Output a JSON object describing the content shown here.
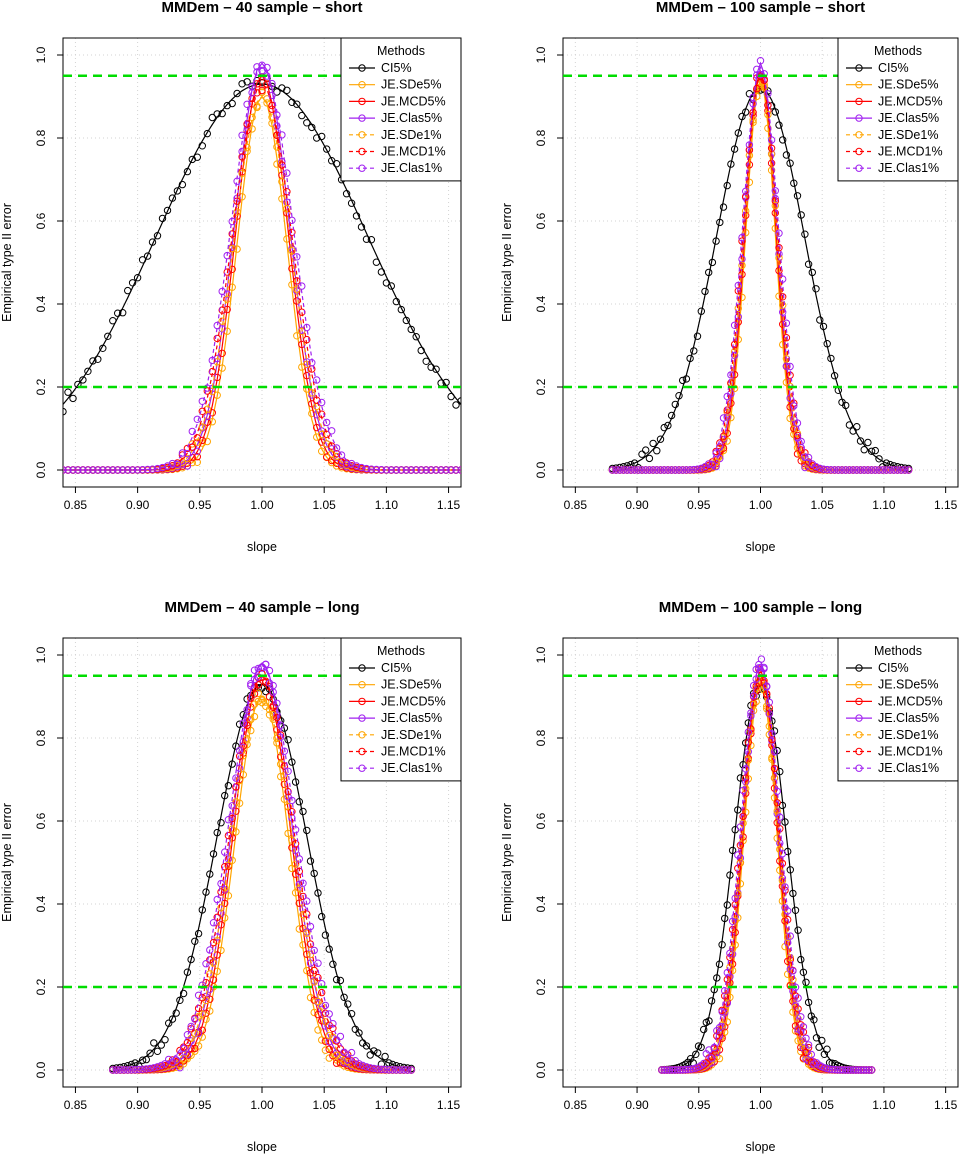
{
  "chart_data": [
    {
      "type": "line",
      "title": "MMDem – 40 sample – short",
      "xlabel": "slope",
      "ylabel": "Empirical type II error",
      "xlim": [
        0.84,
        1.16
      ],
      "ylim": [
        0,
        1
      ],
      "xticks": [
        "0.85",
        "0.90",
        "0.95",
        "1.00",
        "1.05",
        "1.10",
        "1.15"
      ],
      "yticks": [
        "0.0",
        "0.2",
        "0.4",
        "0.6",
        "0.8",
        "1.0"
      ],
      "hlines": [
        0.2,
        0.95
      ],
      "grid": true,
      "legend": {
        "title": "Methods",
        "position": "top-right"
      },
      "x_range": [
        0.84,
        1.16
      ],
      "series": [
        {
          "name": "CI5%",
          "color": "#000000",
          "dashed": false,
          "peak": 0.93,
          "center": 1.0,
          "sigma": 0.085,
          "power": 2
        },
        {
          "name": "JE.SDe5%",
          "color": "#FFA500",
          "dashed": false,
          "peak": 0.9,
          "center": 1.0,
          "sigma": 0.02,
          "power": 2
        },
        {
          "name": "JE.MCD5%",
          "color": "#FF0000",
          "dashed": false,
          "peak": 0.95,
          "center": 1.0,
          "sigma": 0.021,
          "power": 2
        },
        {
          "name": "JE.Clas5%",
          "color": "#A020F0",
          "dashed": false,
          "peak": 0.98,
          "center": 1.0,
          "sigma": 0.022,
          "power": 2
        },
        {
          "name": "JE.SDe1%",
          "color": "#FFA500",
          "dashed": true,
          "peak": 0.9,
          "center": 1.0,
          "sigma": 0.023,
          "power": 2
        },
        {
          "name": "JE.MCD1%",
          "color": "#FF0000",
          "dashed": true,
          "peak": 0.93,
          "center": 1.0,
          "sigma": 0.024,
          "power": 2
        },
        {
          "name": "JE.Clas1%",
          "color": "#A020F0",
          "dashed": true,
          "peak": 0.97,
          "center": 1.0,
          "sigma": 0.025,
          "power": 2
        }
      ]
    },
    {
      "type": "line",
      "title": "MMDem – 100 sample – short",
      "xlabel": "slope",
      "ylabel": "Empirical type II error",
      "xlim": [
        0.84,
        1.16
      ],
      "ylim": [
        0,
        1
      ],
      "xticks": [
        "0.85",
        "0.90",
        "0.95",
        "1.00",
        "1.05",
        "1.10",
        "1.15"
      ],
      "yticks": [
        "0.0",
        "0.2",
        "0.4",
        "0.6",
        "0.8",
        "1.0"
      ],
      "hlines": [
        0.2,
        0.95
      ],
      "grid": true,
      "legend": {
        "title": "Methods",
        "position": "top-right"
      },
      "x_range": [
        0.88,
        1.12
      ],
      "series": [
        {
          "name": "CI5%",
          "color": "#000000",
          "dashed": false,
          "peak": 0.92,
          "center": 1.0,
          "sigma": 0.036,
          "power": 2
        },
        {
          "name": "JE.SDe5%",
          "color": "#FFA500",
          "dashed": false,
          "peak": 0.94,
          "center": 1.0,
          "sigma": 0.012,
          "power": 2
        },
        {
          "name": "JE.MCD5%",
          "color": "#FF0000",
          "dashed": false,
          "peak": 0.96,
          "center": 1.0,
          "sigma": 0.0125,
          "power": 2
        },
        {
          "name": "JE.Clas5%",
          "color": "#A020F0",
          "dashed": false,
          "peak": 0.98,
          "center": 1.0,
          "sigma": 0.013,
          "power": 2
        },
        {
          "name": "JE.SDe1%",
          "color": "#FFA500",
          "dashed": true,
          "peak": 0.93,
          "center": 1.0,
          "sigma": 0.0135,
          "power": 2
        },
        {
          "name": "JE.MCD1%",
          "color": "#FF0000",
          "dashed": true,
          "peak": 0.95,
          "center": 1.0,
          "sigma": 0.014,
          "power": 2
        },
        {
          "name": "JE.Clas1%",
          "color": "#A020F0",
          "dashed": true,
          "peak": 0.97,
          "center": 1.0,
          "sigma": 0.0145,
          "power": 2
        }
      ]
    },
    {
      "type": "line",
      "title": "MMDem – 40 sample – long",
      "xlabel": "slope",
      "ylabel": "Empirical type II error",
      "xlim": [
        0.84,
        1.16
      ],
      "ylim": [
        0,
        1
      ],
      "xticks": [
        "0.85",
        "0.90",
        "0.95",
        "1.00",
        "1.05",
        "1.10",
        "1.15"
      ],
      "yticks": [
        "0.0",
        "0.2",
        "0.4",
        "0.6",
        "0.8",
        "1.0"
      ],
      "hlines": [
        0.2,
        0.95
      ],
      "grid": true,
      "legend": {
        "title": "Methods",
        "position": "top-right"
      },
      "x_range": [
        0.88,
        1.12
      ],
      "series": [
        {
          "name": "CI5%",
          "color": "#000000",
          "dashed": false,
          "peak": 0.93,
          "center": 1.0,
          "sigma": 0.036,
          "power": 2
        },
        {
          "name": "JE.SDe5%",
          "color": "#FFA500",
          "dashed": false,
          "peak": 0.9,
          "center": 1.0,
          "sigma": 0.022,
          "power": 2
        },
        {
          "name": "JE.MCD5%",
          "color": "#FF0000",
          "dashed": false,
          "peak": 0.95,
          "center": 1.0,
          "sigma": 0.023,
          "power": 2
        },
        {
          "name": "JE.Clas5%",
          "color": "#A020F0",
          "dashed": false,
          "peak": 0.98,
          "center": 1.0,
          "sigma": 0.024,
          "power": 2
        },
        {
          "name": "JE.SDe1%",
          "color": "#FFA500",
          "dashed": true,
          "peak": 0.9,
          "center": 1.0,
          "sigma": 0.025,
          "power": 2
        },
        {
          "name": "JE.MCD1%",
          "color": "#FF0000",
          "dashed": true,
          "peak": 0.94,
          "center": 1.0,
          "sigma": 0.026,
          "power": 2
        },
        {
          "name": "JE.Clas1%",
          "color": "#A020F0",
          "dashed": true,
          "peak": 0.97,
          "center": 1.0,
          "sigma": 0.027,
          "power": 2
        }
      ]
    },
    {
      "type": "line",
      "title": "MMDem – 100 sample – long",
      "xlabel": "slope",
      "ylabel": "Empirical type II error",
      "xlim": [
        0.84,
        1.16
      ],
      "ylim": [
        0,
        1
      ],
      "xticks": [
        "0.85",
        "0.90",
        "0.95",
        "1.00",
        "1.05",
        "1.10",
        "1.15"
      ],
      "yticks": [
        "0.0",
        "0.2",
        "0.4",
        "0.6",
        "0.8",
        "1.0"
      ],
      "hlines": [
        0.2,
        0.95
      ],
      "grid": true,
      "legend": {
        "title": "Methods",
        "position": "top-right"
      },
      "x_range": [
        0.92,
        1.09
      ],
      "series": [
        {
          "name": "CI5%",
          "color": "#000000",
          "dashed": false,
          "peak": 0.93,
          "center": 1.0,
          "sigma": 0.021,
          "power": 2
        },
        {
          "name": "JE.SDe5%",
          "color": "#FFA500",
          "dashed": false,
          "peak": 0.93,
          "center": 1.0,
          "sigma": 0.0135,
          "power": 2
        },
        {
          "name": "JE.MCD5%",
          "color": "#FF0000",
          "dashed": false,
          "peak": 0.96,
          "center": 1.0,
          "sigma": 0.014,
          "power": 2
        },
        {
          "name": "JE.Clas5%",
          "color": "#A020F0",
          "dashed": false,
          "peak": 0.98,
          "center": 1.0,
          "sigma": 0.0145,
          "power": 2
        },
        {
          "name": "JE.SDe1%",
          "color": "#FFA500",
          "dashed": true,
          "peak": 0.93,
          "center": 1.0,
          "sigma": 0.015,
          "power": 2
        },
        {
          "name": "JE.MCD1%",
          "color": "#FF0000",
          "dashed": true,
          "peak": 0.95,
          "center": 1.0,
          "sigma": 0.0155,
          "power": 2
        },
        {
          "name": "JE.Clas1%",
          "color": "#A020F0",
          "dashed": true,
          "peak": 0.97,
          "center": 1.0,
          "sigma": 0.016,
          "power": 2
        }
      ]
    }
  ],
  "colors": {
    "reference_line": "#00DD00",
    "grid": "#D3D3D3"
  }
}
